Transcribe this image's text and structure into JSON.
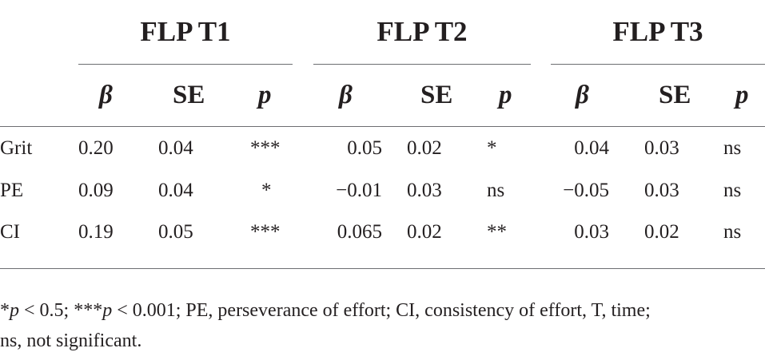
{
  "table": {
    "groups": [
      {
        "label": "FLP T1"
      },
      {
        "label": "FLP T2"
      },
      {
        "label": "FLP T3"
      }
    ],
    "subheaders": [
      "β",
      "SE",
      "p"
    ],
    "rows": [
      {
        "label": "Grit",
        "cells": [
          "0.20",
          "0.04",
          "***",
          "0.05",
          "0.02",
          "*",
          "0.04",
          "0.03",
          "ns"
        ]
      },
      {
        "label": "PE",
        "cells": [
          "0.09",
          "0.04",
          "*",
          "−0.01",
          "0.03",
          "ns",
          "−0.05",
          "0.03",
          "ns"
        ]
      },
      {
        "label": "CI",
        "cells": [
          "0.19",
          "0.05",
          "***",
          "0.065",
          "0.02",
          "**",
          "0.03",
          "0.02",
          "ns"
        ]
      }
    ]
  },
  "footnote": {
    "star1": "*",
    "p1": "p",
    "part1": " < 0.5; ***",
    "p2": "p",
    "part2": " < 0.001; PE, perseverance of effort; CI, consistency of effort, T, time;",
    "line2": "ns, not significant."
  }
}
